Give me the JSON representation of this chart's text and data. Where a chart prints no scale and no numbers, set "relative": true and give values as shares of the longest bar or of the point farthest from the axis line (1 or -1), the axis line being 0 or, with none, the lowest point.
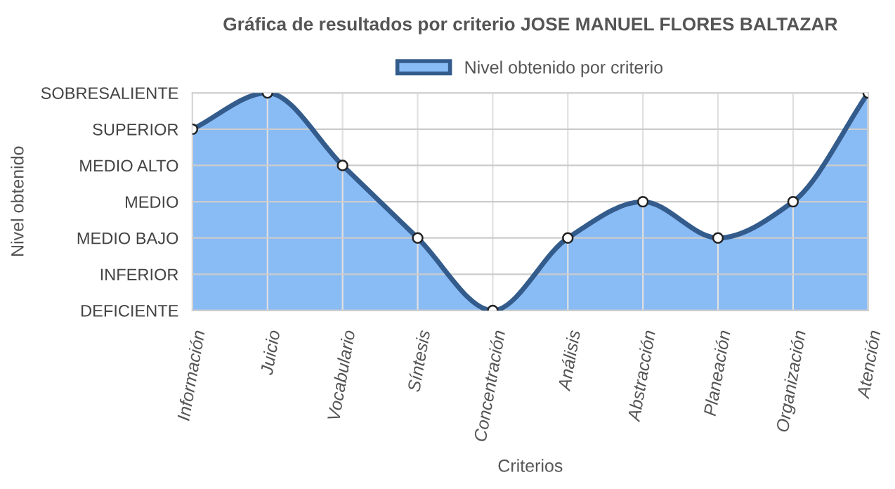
{
  "chart_data": {
    "type": "area",
    "title": "Gráfica de resultados por criterio JOSE MANUEL FLORES BALTAZAR",
    "xlabel": "Criterios",
    "annotations": [
      "Nivel obtenido"
    ],
    "categories": [
      "Información",
      "Juicio",
      "Vocabulario",
      "Síntesis",
      "Concentración",
      "Análisis",
      "Abstracción",
      "Planeación",
      "Organización",
      "Atención"
    ],
    "series": [
      {
        "name": "Nivel obtenido por criterio",
        "color": "#89bbf5",
        "values": [
          0.8333,
          1,
          0.6667,
          0.3333,
          0,
          0.3333,
          0.5,
          0.3333,
          0.5,
          1
        ]
      }
    ],
    "relative": true,
    "y_categories": [
      "SOBRESALIENTE",
      "SUPERIOR",
      "MEDIO ALTO",
      "MEDIO",
      "MEDIO BAJO",
      "INFERIOR",
      "DEFICIENTE"
    ],
    "grid": true,
    "legend": "top",
    "marker": "circle",
    "line_style": "solid"
  }
}
